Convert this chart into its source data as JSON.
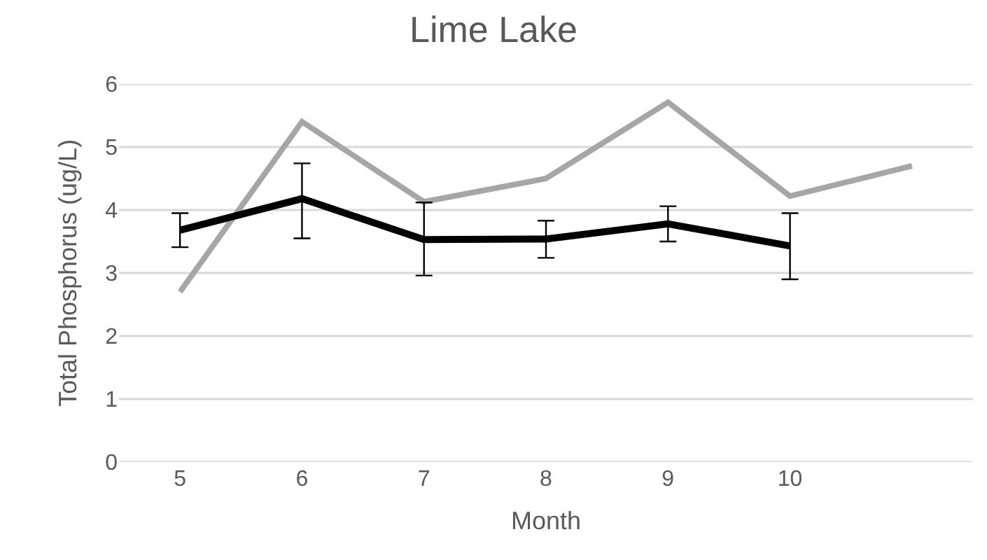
{
  "chart_data": {
    "type": "line",
    "title": "Lime Lake",
    "xlabel": "Month",
    "ylabel": "Total Phosphorus (ug/L)",
    "categories": [
      "5",
      "6",
      "7",
      "8",
      "9",
      "10",
      null
    ],
    "series": [
      {
        "color": "#a6a6a6",
        "values": [
          2.7,
          5.4,
          4.13,
          4.5,
          5.71,
          4.22,
          4.7
        ]
      },
      {
        "color": "#000000",
        "values": [
          3.68,
          4.18,
          3.53,
          3.54,
          3.78,
          3.43,
          null
        ],
        "errors": [
          [
            3.41,
            3.95
          ],
          [
            3.55,
            4.74
          ],
          [
            2.96,
            4.12
          ],
          [
            3.24,
            3.83
          ],
          [
            3.5,
            4.06
          ],
          [
            2.9,
            3.95
          ],
          null
        ]
      }
    ],
    "ylim": [
      0,
      6
    ],
    "yticks": [
      0,
      1,
      2,
      3,
      4,
      5,
      6
    ],
    "grid": "y",
    "marker": "none",
    "line_style": "solid"
  }
}
